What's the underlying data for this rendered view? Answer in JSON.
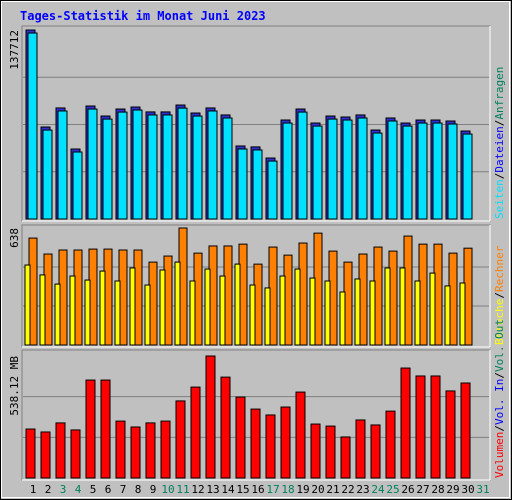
{
  "title": "Tages-Statistik im Monat Juni 2023",
  "legend_separator": "/",
  "categories": [
    "1",
    "2",
    "3",
    "4",
    "5",
    "6",
    "7",
    "8",
    "9",
    "10",
    "11",
    "12",
    "13",
    "14",
    "15",
    "16",
    "17",
    "18",
    "19",
    "20",
    "21",
    "22",
    "23",
    "24",
    "25",
    "26",
    "27",
    "28",
    "29",
    "30",
    "31"
  ],
  "category_colors": [
    "#000000",
    "#000000",
    "#00805c",
    "#00805c",
    "#000000",
    "#000000",
    "#000000",
    "#000000",
    "#000000",
    "#00805c",
    "#00805c",
    "#000000",
    "#000000",
    "#000000",
    "#000000",
    "#000000",
    "#00805c",
    "#00805c",
    "#000000",
    "#000000",
    "#000000",
    "#000000",
    "#000000",
    "#00805c",
    "#00805c",
    "#000000",
    "#000000",
    "#000000",
    "#000000",
    "#000000",
    "#00805c"
  ],
  "chart_data": [
    {
      "type": "bar",
      "ylim": [
        0,
        137712
      ],
      "yticks": [
        34428,
        68856,
        103284
      ],
      "grid": true,
      "series": [
        {
          "name": "Anfragen",
          "color": "#00805c",
          "values": [
            137712,
            67000,
            80900,
            51000,
            82300,
            75000,
            80100,
            81600,
            78000,
            78000,
            83000,
            77200,
            80900,
            75800,
            53200,
            52500,
            44400,
            72100,
            80100,
            69900,
            75000,
            74300,
            75800,
            64800,
            73600,
            69900,
            72100,
            72100,
            71400,
            64100,
            null
          ]
        },
        {
          "name": "Dateien",
          "color": "#3030d0",
          "values": [
            137712,
            67000,
            80900,
            51000,
            82300,
            75000,
            80100,
            81600,
            78000,
            78000,
            83000,
            77200,
            80900,
            75800,
            53200,
            52500,
            44400,
            72100,
            80100,
            69900,
            75000,
            74300,
            75800,
            64800,
            73600,
            69900,
            72100,
            72100,
            71400,
            64100,
            null
          ]
        },
        {
          "name": "Seiten",
          "color": "#00e0ff",
          "values": [
            135500,
            64800,
            78700,
            48800,
            80100,
            72800,
            77900,
            79400,
            75800,
            75800,
            80800,
            75000,
            78700,
            73600,
            51000,
            50300,
            42200,
            69900,
            77900,
            67700,
            72800,
            72100,
            73600,
            62600,
            71400,
            67700,
            69900,
            69900,
            69200,
            61900,
            null
          ]
        }
      ]
    },
    {
      "type": "bar",
      "ylim": [
        0,
        638
      ],
      "yticks": [
        213,
        425
      ],
      "grid": true,
      "series": [
        {
          "name": "Besuche",
          "color": "#ffff00",
          "values": [
            436,
            382,
            332,
            376,
            354,
            403,
            349,
            420,
            327,
            409,
            452,
            349,
            414,
            376,
            441,
            327,
            311,
            376,
            414,
            365,
            349,
            289,
            360,
            349,
            420,
            420,
            349,
            392,
            322,
            338,
            null
          ]
        },
        {
          "name": "Rechner",
          "color": "#ff8000",
          "values": [
            583,
            496,
            518,
            518,
            523,
            523,
            518,
            518,
            452,
            485,
            638,
            501,
            540,
            540,
            550,
            441,
            534,
            490,
            556,
            610,
            512,
            452,
            496,
            534,
            512,
            594,
            550,
            550,
            501,
            528,
            null
          ]
        }
      ]
    },
    {
      "type": "bar",
      "ylim": [
        0,
        538.12
      ],
      "ymax_label": "538.12 MB",
      "yticks": [
        179,
        359
      ],
      "grid": true,
      "series": [
        {
          "name": "Volumen",
          "color": "#ff0000",
          "values": [
            216,
            203,
            243,
            212,
            432,
            432,
            251,
            225,
            243,
            251,
            340,
            401,
            538.12,
            445,
            357,
            304,
            278,
            313,
            379,
            238,
            229,
            181,
            256,
            234,
            295,
            485,
            450,
            450,
            384,
            419,
            null
          ]
        }
      ],
      "legend_extra": [
        {
          "text": "Vol. In",
          "color": "#0000ff"
        },
        {
          "text": "Vol. Out",
          "color": "#00805c"
        }
      ]
    }
  ]
}
